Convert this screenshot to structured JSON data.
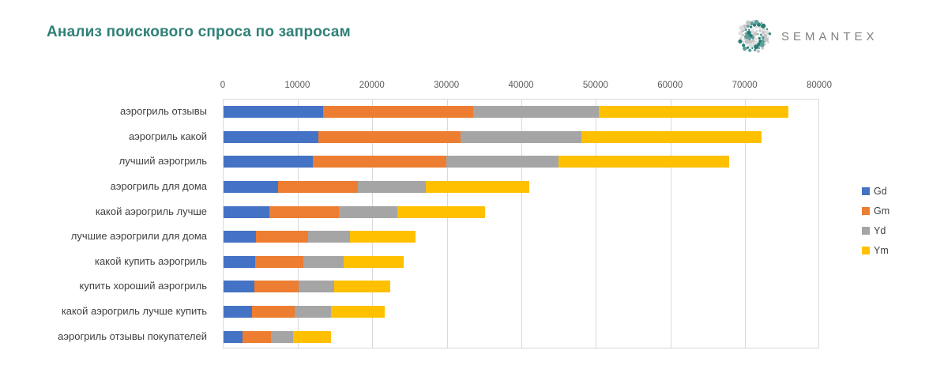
{
  "header": {
    "title": "Анализ поискового спроса по запросам",
    "logo_text": "SEMANTEX"
  },
  "chart_data": {
    "type": "bar",
    "orientation": "horizontal",
    "stacked": true,
    "title": "Анализ поискового спроса по запросам",
    "categories": [
      "аэрогриль отзывы",
      "аэрогриль какой",
      "лучший аэрогриль",
      "аэрогриль для дома",
      "какой аэрогриль лучше",
      "лучшие аэрогрили для дома",
      "какой купить аэрогриль",
      "купить хороший аэрогриль",
      "какой аэрогриль лучше купить",
      "аэрогриль отзывы покупателей"
    ],
    "series": [
      {
        "name": "Gd",
        "color": "#4472C4",
        "values": [
          13400,
          12800,
          12000,
          7300,
          6200,
          4400,
          4300,
          4100,
          3800,
          2600
        ]
      },
      {
        "name": "Gm",
        "color": "#ED7D31",
        "values": [
          20200,
          19100,
          18000,
          10800,
          9300,
          7000,
          6400,
          6000,
          5800,
          3800
        ]
      },
      {
        "name": "Yd",
        "color": "#A5A5A5",
        "values": [
          16900,
          16200,
          15100,
          9100,
          7900,
          5600,
          5500,
          4800,
          4800,
          2900
        ]
      },
      {
        "name": "Ym",
        "color": "#FFC000",
        "values": [
          25500,
          24300,
          22900,
          13900,
          11800,
          8800,
          8000,
          7500,
          7300,
          5100
        ]
      }
    ],
    "totals": [
      76000,
      72400,
      68000,
      41100,
      35200,
      25800,
      24200,
      22400,
      21700,
      14400
    ],
    "x_axis": {
      "min": 0,
      "max": 80000,
      "tick_step": 10000,
      "ticks": [
        0,
        10000,
        20000,
        30000,
        40000,
        50000,
        60000,
        70000,
        80000
      ],
      "position": "top"
    },
    "ylabel": "",
    "xlabel": "",
    "grid": true,
    "legend": {
      "position": "right",
      "entries": [
        "Gd",
        "Gm",
        "Yd",
        "Ym"
      ]
    }
  },
  "colors": {
    "title": "#2F8077",
    "gridline": "#D9D9D9",
    "axis_text": "#595959",
    "category_text": "#404040",
    "logo_text": "#808080",
    "logo_dot_teal": "#2A7D76",
    "logo_dot_gray": "#C4C4C4"
  }
}
